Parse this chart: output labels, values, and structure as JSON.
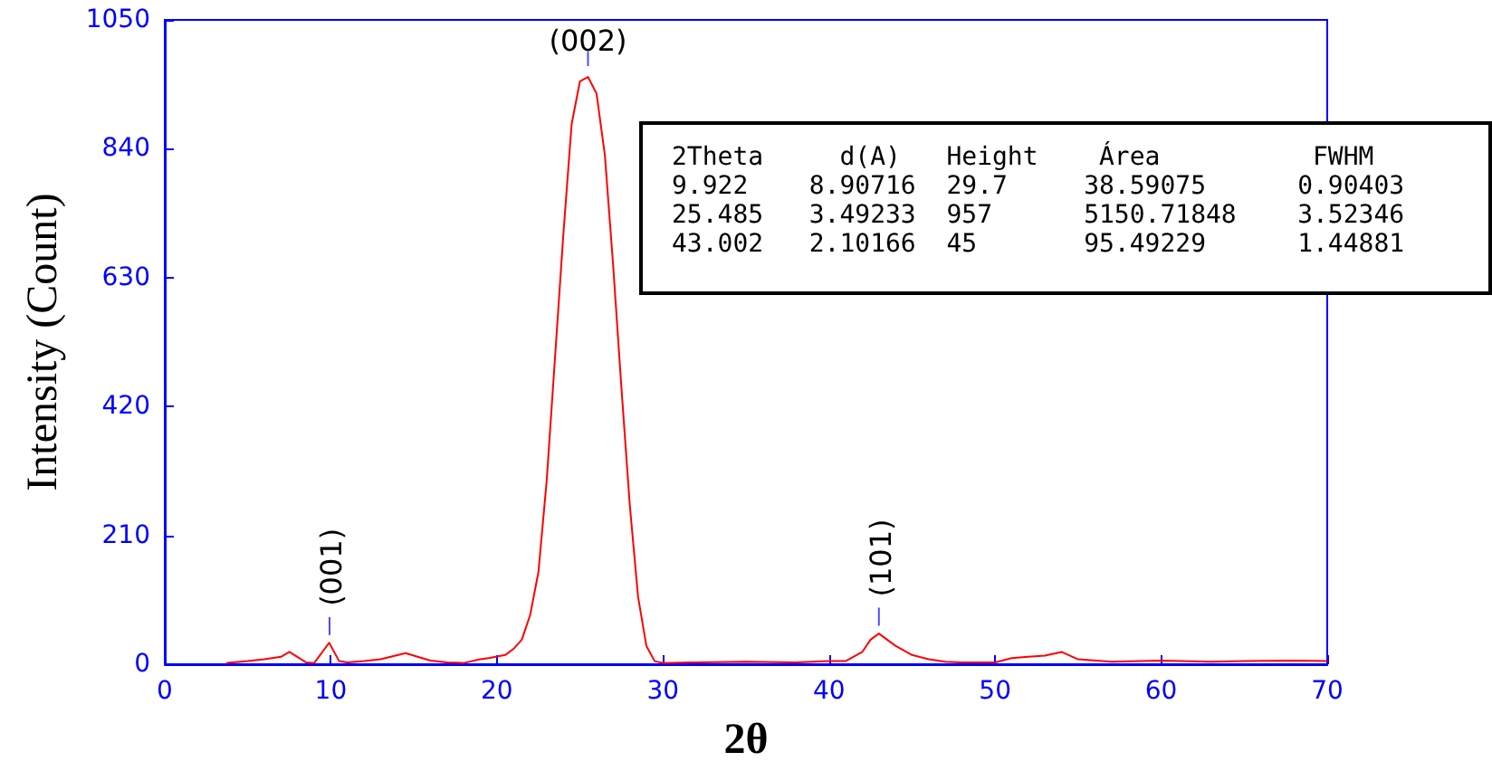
{
  "chart_data": {
    "type": "line",
    "xlabel": "2θ",
    "ylabel": "Intensity (Count)",
    "xlim": [
      0,
      70
    ],
    "xticks": [
      0,
      10,
      20,
      30,
      40,
      50,
      60,
      70
    ],
    "ylim": [
      0,
      1050
    ],
    "yticks": [
      0,
      210,
      420,
      630,
      840,
      1050
    ],
    "grid": false,
    "marker": "none",
    "line_style": "solid",
    "series": [
      {
        "color": "#ff0000",
        "x": [
          3.7,
          5,
          6,
          7,
          7.5,
          8.5,
          9,
          9.9,
          10.5,
          11,
          12,
          13,
          14.5,
          16,
          17,
          18,
          19,
          19.5,
          20.5,
          21,
          21.5,
          22,
          22.5,
          23,
          23.5,
          24,
          24.5,
          25,
          25.485,
          26,
          26.5,
          27,
          27.5,
          28,
          28.5,
          29,
          29.5,
          30,
          32,
          35,
          38,
          40,
          41,
          42,
          42.5,
          43,
          44,
          45,
          46,
          47,
          48,
          50,
          51,
          52,
          53,
          54,
          55,
          57,
          60,
          63,
          65,
          68,
          70
        ],
        "values": [
          2,
          5,
          8,
          12,
          20,
          3,
          2,
          35,
          5,
          3,
          5,
          8,
          18,
          6,
          3,
          2,
          8,
          10,
          15,
          25,
          40,
          80,
          150,
          300,
          500,
          700,
          880,
          950,
          957,
          930,
          830,
          650,
          450,
          260,
          110,
          30,
          5,
          2,
          3,
          4,
          3,
          5,
          5,
          20,
          40,
          50,
          30,
          15,
          8,
          4,
          3,
          3,
          10,
          12,
          14,
          20,
          8,
          4,
          6,
          4,
          5,
          6,
          5
        ]
      }
    ],
    "annotations": [
      {
        "text": "(001)",
        "x": 9.922,
        "y": 29.7
      },
      {
        "text": "(002)",
        "x": 25.485,
        "y": 957
      },
      {
        "text": "(101)",
        "x": 43.002,
        "y": 45
      },
      "2Theta     d(A)   Height    Área          FWHM",
      "9.922    8.90716  29.7     38.59075      0.90403",
      "25.485   3.49233  957      5150.71848    3.52346",
      "43.002   2.10166  45       95.49229      1.44881"
    ]
  }
}
